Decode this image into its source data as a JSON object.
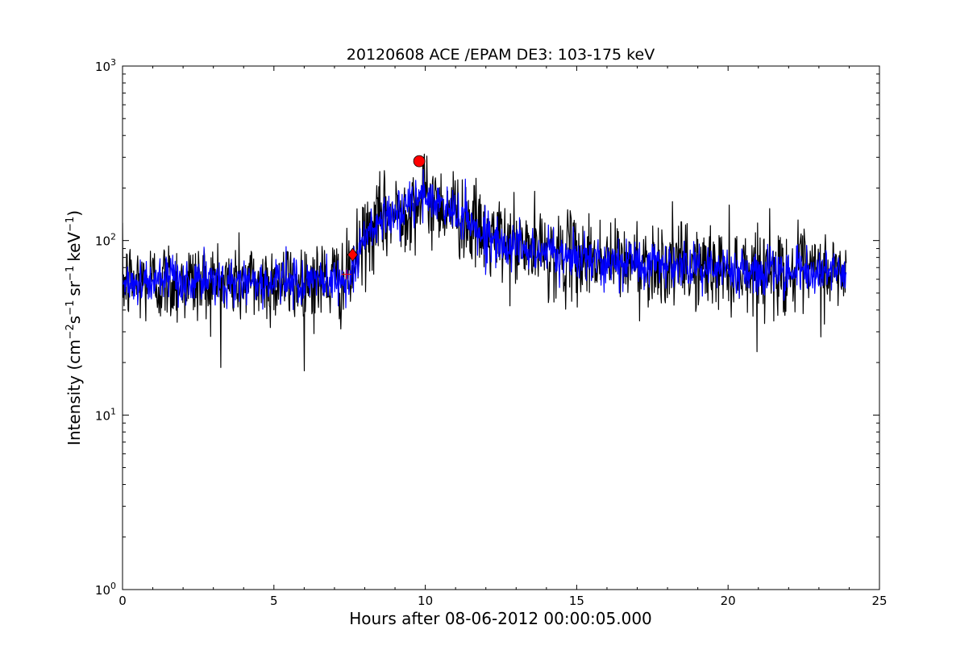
{
  "chart_data": {
    "type": "line",
    "title": "20120608 ACE /EPAM DE3: 103-175 keV",
    "xlabel": "Hours after 08-06-2012 00:00:05.000",
    "ylabel": {
      "prefix": "Intensity (cm",
      "exp1": "−2",
      "s": "s",
      "exp2": "−1",
      "sr": "sr",
      "exp3": "−1",
      "kev": "keV",
      "exp4": "−1",
      "suffix": ")"
    },
    "xlim": [
      0,
      25
    ],
    "ylim": [
      1,
      1000
    ],
    "yscale": "log",
    "grid": false,
    "x_ticks": [
      0,
      5,
      10,
      15,
      20,
      25
    ],
    "x_tick_labels": [
      "0",
      "5",
      "10",
      "15",
      "20",
      "25"
    ],
    "y_ticks": [
      1,
      10,
      100,
      1000
    ],
    "y_tick_labels": [
      {
        "base": "10",
        "exp": "0"
      },
      {
        "base": "10",
        "exp": "1"
      },
      {
        "base": "10",
        "exp": "2"
      },
      {
        "base": "10",
        "exp": "3"
      }
    ],
    "profile": {
      "x": [
        0.0,
        2.0,
        4.0,
        6.0,
        7.5,
        7.9,
        8.4,
        9.0,
        9.6,
        10.0,
        10.5,
        11.0,
        11.5,
        12.0,
        13.0,
        14.0,
        15.0,
        17.0,
        19.0,
        21.0,
        23.0,
        23.9
      ],
      "y": [
        58,
        58,
        58,
        58,
        60,
        95,
        125,
        140,
        165,
        175,
        160,
        148,
        125,
        105,
        92,
        85,
        80,
        75,
        70,
        68,
        65,
        65
      ]
    },
    "series": [
      {
        "name": "",
        "color": "#000000",
        "role": "raw",
        "samples": 1430,
        "x_range": [
          0.0,
          23.9
        ],
        "noise_sigma": 0.28,
        "seed": 12345
      },
      {
        "name": "",
        "color": "#0000ff",
        "role": "smoothed",
        "samples": 1430,
        "x_range": [
          0.0,
          23.9
        ],
        "noise_sigma": 0.15,
        "seed": 67890
      }
    ],
    "markers": [
      {
        "name": "onset-cross",
        "shape": "plus",
        "x": 7.4,
        "y": 64,
        "color": "#ff0000"
      },
      {
        "name": "onset-diamond",
        "shape": "diamond",
        "x": 7.6,
        "y": 83,
        "color": "#ff0000"
      },
      {
        "name": "peak-circle",
        "shape": "circle",
        "x": 9.8,
        "y": 285,
        "color": "#ff0000"
      }
    ]
  }
}
